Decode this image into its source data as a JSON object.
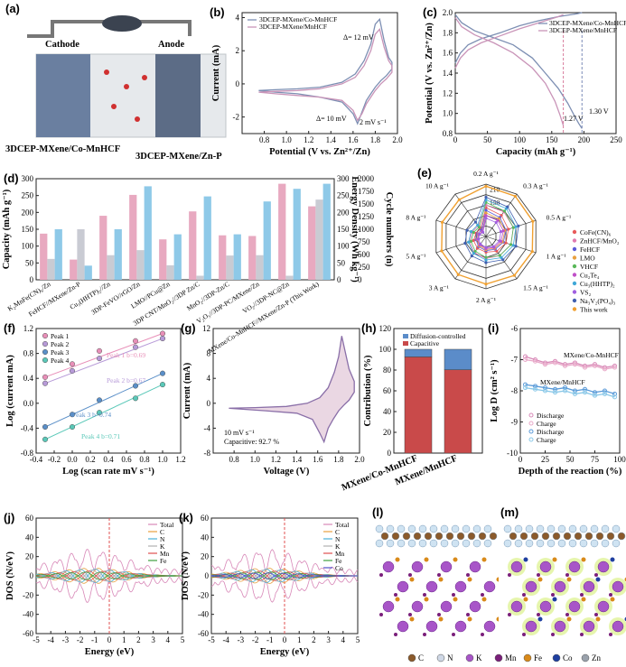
{
  "panels": {
    "a": {
      "label": "(a)",
      "cathode": "Cathode",
      "anode": "Anode",
      "cap_left": "3DCEP-MXene/Co-MnHCF",
      "cap_right": "3DCEP-MXene/Zn-P"
    },
    "l": {
      "label": "(l)"
    },
    "m": {
      "label": "(m)"
    }
  },
  "atom_legend": [
    {
      "sym": "C",
      "color": "#8b5a2b"
    },
    {
      "sym": "N",
      "color": "#cfd8e6"
    },
    {
      "sym": "K",
      "color": "#a855c8"
    },
    {
      "sym": "Mn",
      "color": "#7a1f7a"
    },
    {
      "sym": "Fe",
      "color": "#d98a1a"
    },
    {
      "sym": "Co",
      "color": "#1f3fa0"
    },
    {
      "sym": "Zn",
      "color": "#9aa2ac"
    }
  ],
  "chart_data": [
    {
      "id": "b",
      "label": "(b)",
      "type": "line",
      "xlabel": "Potential (V vs. Zn²⁺/Zn)",
      "ylabel": "Current (mA)",
      "xlim": [
        0.6,
        2.0
      ],
      "ylim": [
        -3,
        4.3
      ],
      "xticks": [
        "0.8",
        "1.0",
        "1.2",
        "1.4",
        "1.6",
        "1.8",
        "2.0"
      ],
      "yticks": [
        "-2",
        "0",
        "2",
        "4"
      ],
      "legend": [
        "3DCEP-MXene/Co-MnHCF",
        "3DCEP-MXene/MnHCF"
      ],
      "annotations": [
        "Δ= 12 mV",
        "Δ= 10 mV",
        "2 mV s⁻¹"
      ],
      "series": [
        {
          "name": "3DCEP-MXene/Co-MnHCF",
          "color": "#7d8fb3",
          "x": [
            0.75,
            0.9,
            1.1,
            1.3,
            1.5,
            1.62,
            1.7,
            1.76,
            1.8,
            1.84,
            1.88,
            1.92,
            1.95,
            1.95,
            1.9,
            1.85,
            1.8,
            1.76,
            1.72,
            1.68,
            1.64,
            1.6,
            1.5,
            1.3,
            1.1,
            0.9,
            0.75
          ],
          "y": [
            -0.4,
            -0.35,
            -0.3,
            -0.2,
            0.1,
            0.6,
            1.4,
            2.4,
            3.6,
            3.9,
            2.6,
            1.6,
            1.3,
            0.9,
            0.5,
            0.2,
            -0.2,
            -0.6,
            -1.0,
            -1.7,
            -2.4,
            -1.8,
            -1.1,
            -0.8,
            -0.6,
            -0.5,
            -0.4
          ]
        },
        {
          "name": "3DCEP-MXene/MnHCF",
          "color": "#c994b8",
          "x": [
            0.75,
            0.9,
            1.1,
            1.3,
            1.5,
            1.62,
            1.7,
            1.76,
            1.8,
            1.84,
            1.88,
            1.92,
            1.95,
            1.95,
            1.9,
            1.85,
            1.8,
            1.76,
            1.72,
            1.68,
            1.64,
            1.6,
            1.5,
            1.3,
            1.1,
            0.9,
            0.75
          ],
          "y": [
            -0.5,
            -0.45,
            -0.4,
            -0.3,
            0.0,
            0.4,
            1.1,
            2.0,
            3.0,
            3.3,
            2.2,
            1.4,
            1.1,
            0.7,
            0.3,
            0.0,
            -0.4,
            -0.8,
            -1.2,
            -1.8,
            -2.2,
            -1.6,
            -1.0,
            -0.8,
            -0.7,
            -0.6,
            -0.5
          ]
        }
      ]
    },
    {
      "id": "c",
      "label": "(c)",
      "type": "line",
      "xlabel": "Capacity (mAh g⁻¹)",
      "ylabel": "Potential (V vs. Zn²⁺/Zn)",
      "xlim": [
        0,
        250
      ],
      "ylim": [
        0.8,
        2.0
      ],
      "xticks": [
        "0",
        "50",
        "100",
        "150",
        "200",
        "250"
      ],
      "yticks": [
        "0.8",
        "1.0",
        "1.2",
        "1.4",
        "1.6",
        "1.8",
        "2.0"
      ],
      "legend": [
        "3DCEP-MXene/Co-MnHCF",
        "3DCEP-MXene/MnHCF"
      ],
      "annotations": [
        "1.27 V",
        "1.30 V"
      ],
      "series": [
        {
          "name": "Co-MnHCF discharge",
          "color": "#7d8fb3",
          "x": [
            0,
            10,
            30,
            60,
            90,
            120,
            140,
            160,
            175,
            185,
            192,
            197
          ],
          "y": [
            1.98,
            1.9,
            1.82,
            1.75,
            1.68,
            1.55,
            1.4,
            1.25,
            1.1,
            0.98,
            0.9,
            0.85
          ]
        },
        {
          "name": "Co-MnHCF charge",
          "color": "#7d8fb3",
          "x": [
            0,
            8,
            20,
            40,
            70,
            100,
            130,
            160,
            190,
            197
          ],
          "y": [
            1.5,
            1.6,
            1.68,
            1.74,
            1.8,
            1.87,
            1.92,
            1.96,
            1.99,
            2.0
          ]
        },
        {
          "name": "MnHCF discharge",
          "color": "#c994b8",
          "x": [
            0,
            10,
            30,
            60,
            90,
            120,
            140,
            155,
            163,
            168
          ],
          "y": [
            1.95,
            1.86,
            1.78,
            1.7,
            1.6,
            1.45,
            1.3,
            1.12,
            0.98,
            0.88
          ]
        },
        {
          "name": "MnHCF charge",
          "color": "#c994b8",
          "x": [
            0,
            8,
            20,
            40,
            70,
            100,
            130,
            160,
            168
          ],
          "y": [
            1.45,
            1.55,
            1.63,
            1.7,
            1.77,
            1.84,
            1.9,
            1.96,
            1.98
          ]
        }
      ]
    },
    {
      "id": "d",
      "label": "(d)",
      "type": "bar",
      "ylabel": "Capacity (mAh g⁻¹)",
      "y2label": "Energy Density (Wh kg⁻¹)",
      "y3label": "Cycle numbers (n)",
      "ylim": [
        0,
        300
      ],
      "y2lim": [
        0,
        300
      ],
      "y3lim": [
        0,
        2000
      ],
      "yticks": [
        "0",
        "50",
        "100",
        "150",
        "200",
        "250",
        "300"
      ],
      "y2ticks": [
        "0",
        "50",
        "100",
        "150",
        "200",
        "250",
        "300"
      ],
      "y3ticks": [
        "0",
        "250",
        "500",
        "750",
        "1000",
        "1250",
        "1500",
        "1750",
        "2000"
      ],
      "categories": [
        "K₂MnFe(CN)₆/Zn",
        "FeHCF//MXene/Zn-P",
        "Cu₃(HHTP)₂//Zn",
        "3DP-FeVO//rGO/Zn",
        "LMO//PCu@Zn",
        "3DP CNT/MnO₂//3DP Zn/C",
        "MnO₂//3DP-Zn/C",
        "V₂O₅//3DP-PC/MXene/Zn",
        "VO₂//3DP-NC@Zn",
        "MXene/Co-MnHCF//MXene/Zn-P (This Work)"
      ],
      "series": [
        {
          "name": "Capacity",
          "color": "#e8a9c0",
          "values": [
            137,
            60,
            190,
            252,
            120,
            203,
            132,
            130,
            285,
            218
          ]
        },
        {
          "name": "Energy Density",
          "color": "#c9cbd3",
          "values": [
            62,
            150,
            73,
            88,
            43,
            12,
            72,
            73,
            12,
            238
          ]
        },
        {
          "name": "Cycle numbers",
          "color": "#8ec9e8",
          "values": [
            1000,
            280,
            1000,
            1850,
            900,
            1650,
            900,
            1550,
            1800,
            1900
          ]
        }
      ]
    },
    {
      "id": "e",
      "label": "(e)",
      "type": "radar",
      "axes": [
        "0.2 A g⁻¹",
        "0.3 A g⁻¹",
        "0.5 A g⁻¹",
        "1 A g⁻¹",
        "1.5 A g⁻¹",
        "2 A g⁻¹",
        "3 A g⁻¹",
        "5 A g⁻¹",
        "8 A g⁻¹",
        "10 A g⁻¹"
      ],
      "rings": [
        "150",
        "210"
      ],
      "legend": [
        "CoFe(CN)₆",
        "ZnHCF/MnO₂",
        "FeHCF",
        "LMO",
        "VHCF",
        "Cu₂Te₄",
        "Cu₃(HHTP)₂",
        "VS₂",
        "Na₃V₂(PO₄)₃",
        "This work"
      ],
      "colors": [
        "#e85a5a",
        "#e07ab0",
        "#5a5ad8",
        "#e8a040",
        "#5ab85a",
        "#c050c8",
        "#40a8d8",
        "#a060e0",
        "#4060b0",
        "#f0a030"
      ],
      "series_values": [
        [
          0.55,
          0.5,
          0.45,
          0.4,
          0.35,
          0.3,
          0.28,
          0.25,
          0.2,
          0.18
        ],
        [
          0.6,
          0.58,
          0.55,
          0.5,
          0.45,
          0.42,
          0.38,
          0.33,
          0.28,
          0.25
        ],
        [
          0.5,
          0.45,
          0.4,
          0.35,
          0.3,
          0.27,
          0.24,
          0.2,
          0.17,
          0.15
        ],
        [
          0.45,
          0.42,
          0.38,
          0.33,
          0.28,
          0.25,
          0.22,
          0.18,
          0.15,
          0.12
        ],
        [
          0.65,
          0.6,
          0.55,
          0.5,
          0.45,
          0.4,
          0.35,
          0.3,
          0.25,
          0.22
        ],
        [
          0.4,
          0.38,
          0.35,
          0.3,
          0.26,
          0.23,
          0.2,
          0.17,
          0.14,
          0.12
        ],
        [
          0.7,
          0.66,
          0.6,
          0.55,
          0.5,
          0.45,
          0.4,
          0.35,
          0.3,
          0.27
        ],
        [
          0.35,
          0.33,
          0.3,
          0.27,
          0.24,
          0.21,
          0.18,
          0.15,
          0.13,
          0.1
        ],
        [
          0.75,
          0.7,
          0.65,
          0.6,
          0.55,
          0.5,
          0.46,
          0.42,
          0.38,
          0.34
        ],
        [
          0.96,
          0.95,
          0.94,
          0.93,
          0.92,
          0.91,
          0.9,
          0.89,
          0.88,
          0.87
        ]
      ]
    },
    {
      "id": "f",
      "label": "(f)",
      "type": "scatter",
      "xlabel": "Log (scan rate mV s⁻¹)",
      "ylabel": "Log (current mA)",
      "xlim": [
        -0.4,
        1.2
      ],
      "ylim": [
        -0.8,
        1.2
      ],
      "xticks": [
        "-0.4",
        "-0.2",
        "0.0",
        "0.2",
        "0.4",
        "0.6",
        "0.8",
        "1.0",
        "1.2"
      ],
      "yticks": [
        "-0.8",
        "-0.4",
        "0.0",
        "0.4",
        "0.8",
        "1.2"
      ],
      "legend": [
        "Peak 1",
        "Peak 2",
        "Peak 3",
        "Peak 4"
      ],
      "annotations": [
        "Peak 1 b=0.69",
        "Peak 2 b=0.67",
        "Peak 3 b=0.74",
        "Peak 4 b=0.71"
      ],
      "series": [
        {
          "name": "Peak 1",
          "color": "#e88fb8",
          "x": [
            -0.3,
            0.0,
            0.3,
            0.7,
            1.0
          ],
          "y": [
            0.42,
            0.63,
            0.84,
            1.0,
            1.12
          ]
        },
        {
          "name": "Peak 2",
          "color": "#b79ad8",
          "x": [
            -0.3,
            0.0,
            0.3,
            0.7,
            1.0
          ],
          "y": [
            0.32,
            0.52,
            0.72,
            0.9,
            1.04
          ]
        },
        {
          "name": "Peak 3",
          "color": "#5a8fc8",
          "x": [
            -0.3,
            0.0,
            0.3,
            0.7,
            1.0
          ],
          "y": [
            -0.38,
            -0.18,
            0.05,
            0.28,
            0.48
          ]
        },
        {
          "name": "Peak 4",
          "color": "#5ac8b8",
          "x": [
            -0.3,
            0.0,
            0.3,
            0.7,
            1.0
          ],
          "y": [
            -0.58,
            -0.38,
            -0.15,
            0.08,
            0.3
          ]
        }
      ]
    },
    {
      "id": "g",
      "label": "(g)",
      "type": "area",
      "xlabel": "Voltage (V)",
      "ylabel": "Current (mA)",
      "xlim": [
        0.6,
        2.0
      ],
      "ylim": [
        -8,
        12
      ],
      "xticks": [
        "0.8",
        "1.0",
        "1.2",
        "1.4",
        "1.6",
        "1.8",
        "2.0"
      ],
      "yticks": [
        "-8",
        "-4",
        "0",
        "4",
        "8",
        "12"
      ],
      "annotations": [
        "10 mV s⁻¹",
        "Capacitive: 92.7 %"
      ],
      "series": [
        {
          "name": "CV",
          "color": "#8a6fa8",
          "x": [
            0.75,
            1.0,
            1.3,
            1.5,
            1.62,
            1.7,
            1.76,
            1.8,
            1.83,
            1.86,
            1.9,
            1.95,
            1.95,
            1.9,
            1.85,
            1.8,
            1.75,
            1.7,
            1.66,
            1.62,
            1.55,
            1.4,
            1.1,
            0.75
          ],
          "y": [
            -0.8,
            -0.7,
            -0.5,
            0.0,
            0.9,
            2.5,
            5.0,
            7.5,
            10.8,
            8.5,
            5.5,
            3.5,
            1.8,
            0.5,
            -0.3,
            -1.2,
            -2.5,
            -4.0,
            -6.2,
            -4.8,
            -2.6,
            -1.6,
            -1.2,
            -0.8
          ]
        }
      ]
    },
    {
      "id": "h",
      "label": "(h)",
      "type": "bar",
      "ylabel": "Contribution (%)",
      "ylim": [
        0,
        120
      ],
      "yticks": [
        "0",
        "20",
        "40",
        "60",
        "80",
        "100",
        "120"
      ],
      "categories": [
        "MXene/Co-MnHCF",
        "MXene/MnHCF"
      ],
      "legend": [
        "Diffusion-controlled",
        "Capacitive"
      ],
      "series": [
        {
          "name": "Capacitive",
          "color": "#c94a4a",
          "values": [
            92.7,
            80.3
          ]
        },
        {
          "name": "Diffusion-controlled",
          "color": "#5b8cc9",
          "values": [
            7.3,
            19.7
          ]
        }
      ]
    },
    {
      "id": "i",
      "label": "(i)",
      "type": "line",
      "xlabel": "Depth of the reaction (%)",
      "ylabel": "Log D (cm² s⁻¹)",
      "xlim": [
        0,
        100
      ],
      "ylim": [
        -10,
        -6
      ],
      "xticks": [
        "0",
        "25",
        "50",
        "75",
        "100"
      ],
      "yticks": [
        "-10",
        "-9",
        "-8",
        "-7",
        "-6"
      ],
      "annotations": [
        "MXene/Co-MnHCF",
        "MXene/MnHCF"
      ],
      "legend": [
        "Discharge",
        "Charge",
        "Discharge",
        "Charge"
      ],
      "series": [
        {
          "name": "Co-MnHCF Discharge",
          "color": "#d88ab8",
          "x": [
            5,
            15,
            25,
            35,
            45,
            55,
            65,
            75,
            85,
            95
          ],
          "y": [
            -6.9,
            -7.0,
            -7.1,
            -7.05,
            -7.15,
            -7.1,
            -7.2,
            -7.15,
            -7.25,
            -7.2
          ]
        },
        {
          "name": "Co-MnHCF Charge",
          "color": "#e8a8c8",
          "x": [
            5,
            15,
            25,
            35,
            45,
            55,
            65,
            75,
            85,
            95
          ],
          "y": [
            -7.0,
            -7.05,
            -7.15,
            -7.1,
            -7.2,
            -7.15,
            -7.25,
            -7.2,
            -7.3,
            -7.25
          ]
        },
        {
          "name": "MnHCF Discharge",
          "color": "#5a9ad8",
          "x": [
            5,
            15,
            25,
            35,
            45,
            55,
            65,
            75,
            85,
            95
          ],
          "y": [
            -7.8,
            -7.85,
            -7.9,
            -7.95,
            -7.9,
            -8.0,
            -7.95,
            -8.05,
            -8.0,
            -8.1
          ]
        },
        {
          "name": "MnHCF Charge",
          "color": "#8ac8e8",
          "x": [
            5,
            15,
            25,
            35,
            45,
            55,
            65,
            75,
            85,
            95
          ],
          "y": [
            -7.9,
            -7.95,
            -8.0,
            -8.05,
            -8.0,
            -8.1,
            -8.05,
            -8.15,
            -8.1,
            -8.2
          ]
        }
      ]
    },
    {
      "id": "j",
      "label": "(j)",
      "type": "line",
      "xlabel": "Energy (eV)",
      "ylabel": "DOS (N/eV)",
      "xlim": [
        -5,
        5
      ],
      "ylim": [
        -60,
        60
      ],
      "xticks": [
        "-5",
        "-4",
        "-3",
        "-2",
        "-1",
        "0",
        "1",
        "2",
        "3",
        "4",
        "5"
      ],
      "yticks": [
        "-60",
        "-40",
        "-20",
        "0",
        "20",
        "40",
        "60"
      ],
      "legend": [
        "Total",
        "C",
        "N",
        "K",
        "Mn",
        "Fe"
      ],
      "colors": [
        "#d888b8",
        "#e8a040",
        "#4ab0d8",
        "#b0b0b0",
        "#e05050",
        "#40a040"
      ]
    },
    {
      "id": "k",
      "label": "(k)",
      "type": "line",
      "xlabel": "Energy (eV)",
      "ylabel": "DOS (N/eV)",
      "xlim": [
        -5,
        5
      ],
      "ylim": [
        -60,
        60
      ],
      "xticks": [
        "-5",
        "-4",
        "-3",
        "-2",
        "-1",
        "0",
        "1",
        "2",
        "3",
        "4",
        "5"
      ],
      "yticks": [
        "-60",
        "-40",
        "-20",
        "0",
        "20",
        "40",
        "60"
      ],
      "legend": [
        "Total",
        "C",
        "N",
        "K",
        "Mn",
        "Fe",
        "Co"
      ],
      "colors": [
        "#d888b8",
        "#e8a040",
        "#4ab0d8",
        "#b0b0b0",
        "#e05050",
        "#40a040",
        "#5050c8"
      ]
    }
  ]
}
